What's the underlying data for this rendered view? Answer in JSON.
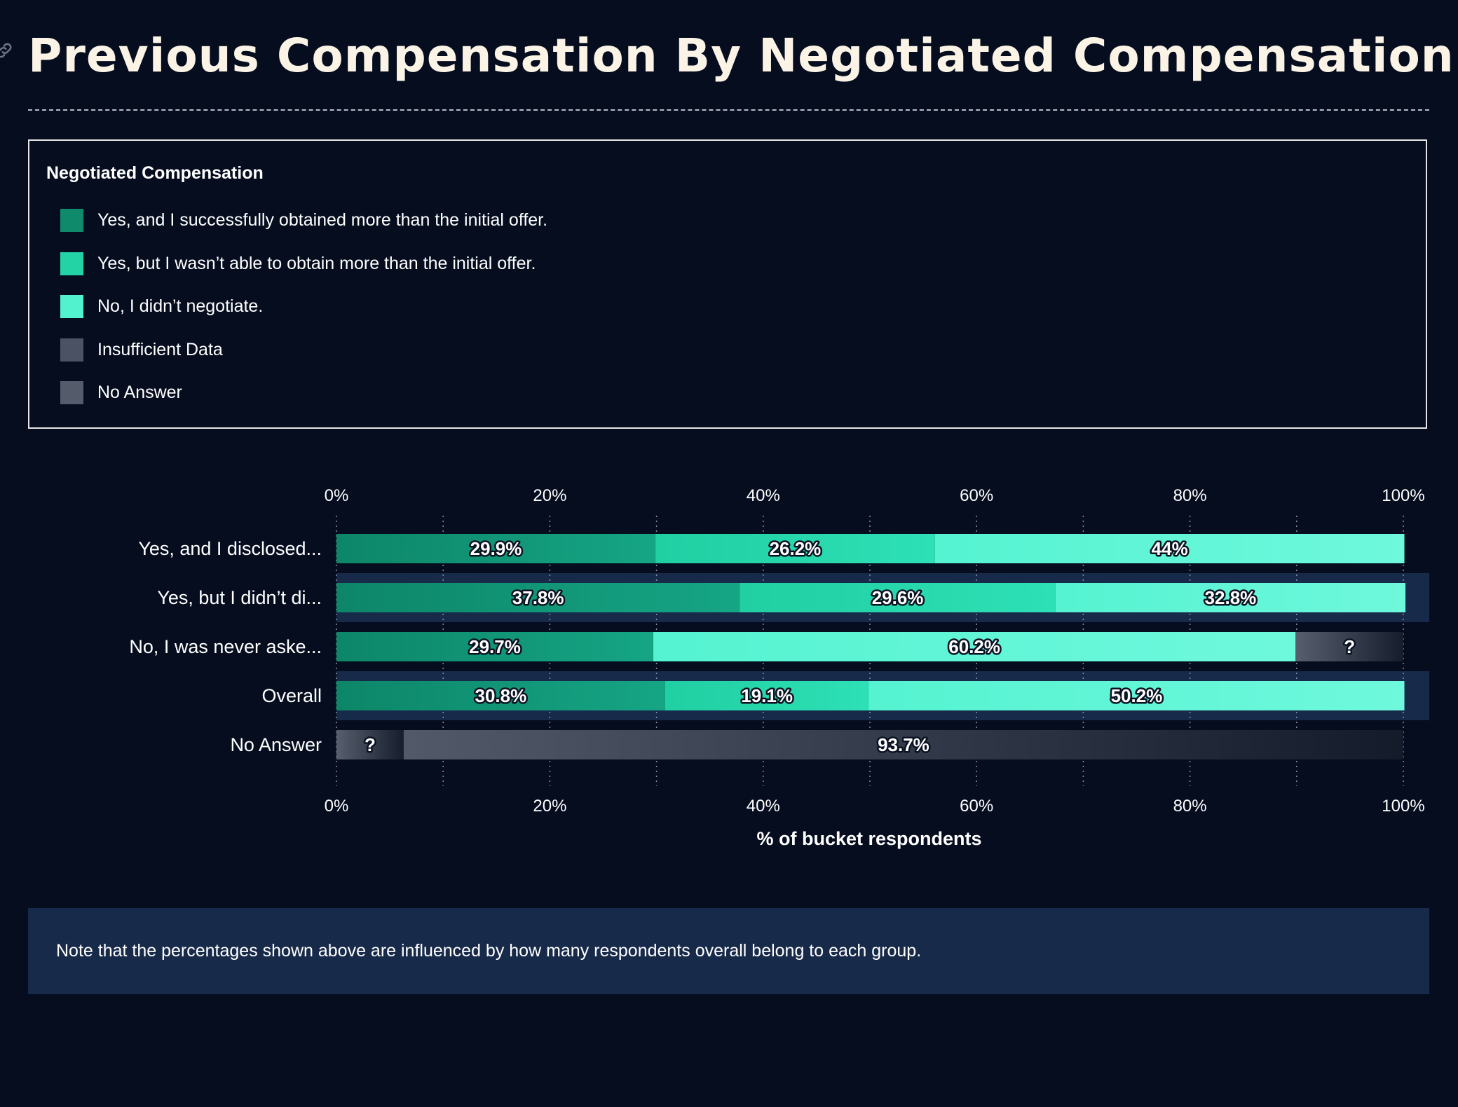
{
  "title": "Previous Compensation By Negotiated Compensation",
  "legend": {
    "title": "Negotiated Compensation",
    "items": [
      {
        "label": "Yes, and I successfully obtained more than the initial offer.",
        "color": "#0f8b6c"
      },
      {
        "label": "Yes, but I wasn’t able to obtain more than the initial offer.",
        "color": "#23d3a6"
      },
      {
        "label": "No, I didn’t negotiate.",
        "color": "#52f2cf"
      },
      {
        "label": "Insufficient Data",
        "color": "#4a5263"
      },
      {
        "label": "No Answer",
        "color": "#545c6b"
      }
    ]
  },
  "chart_data": {
    "type": "bar",
    "orientation": "horizontal",
    "stacked": true,
    "categories": [
      "Yes, and I disclosed...",
      "Yes, but I didn’t di...",
      "No, I was never aske...",
      "Overall",
      "No Answer"
    ],
    "series": [
      {
        "name": "Yes, and I successfully obtained more than the initial offer.",
        "color": "#0f8b6c",
        "values": [
          29.9,
          37.8,
          29.7,
          30.8,
          0
        ]
      },
      {
        "name": "Yes, but I wasn’t able to obtain more than the initial offer.",
        "color": "#23d3a6",
        "values": [
          26.2,
          29.6,
          0,
          19.1,
          0
        ]
      },
      {
        "name": "No, I didn’t negotiate.",
        "color": "#52f2cf",
        "values": [
          44,
          32.8,
          60.2,
          50.2,
          0
        ]
      },
      {
        "name": "Insufficient Data",
        "color": "#4a5263",
        "values": [
          0,
          0,
          10.1,
          0,
          6.3
        ]
      },
      {
        "name": "No Answer",
        "color": "#545c6b",
        "values": [
          0,
          0,
          0,
          0,
          93.7
        ]
      }
    ],
    "data_labels": [
      [
        "29.9%",
        "26.2%",
        "44%",
        "",
        ""
      ],
      [
        "37.8%",
        "29.6%",
        "32.8%",
        "",
        ""
      ],
      [
        "29.7%",
        "",
        "60.2%",
        "?",
        ""
      ],
      [
        "30.8%",
        "19.1%",
        "50.2%",
        "",
        ""
      ],
      [
        "",
        "",
        "",
        "?",
        "93.7%"
      ]
    ],
    "x_ticks": [
      "0%",
      "20%",
      "40%",
      "60%",
      "80%",
      "100%"
    ],
    "x_tick_values": [
      0,
      20,
      40,
      60,
      80,
      100
    ],
    "xlim": [
      0,
      100
    ],
    "xlabel": "% of bucket respondents",
    "ylabel": "",
    "grid": true,
    "highlighted_rows": [
      1,
      3
    ]
  },
  "note": "Note that the percentages shown above are influenced by how many respondents overall belong to each group."
}
